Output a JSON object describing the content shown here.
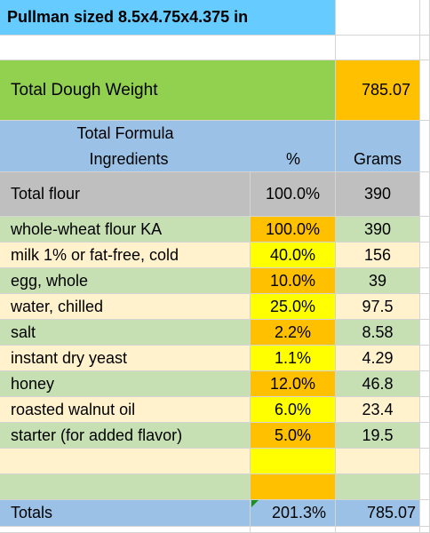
{
  "title": "Pullman sized 8.5x4.75x4.375 in",
  "total_dough": {
    "label": "Total Dough Weight",
    "value": "785.07"
  },
  "header": {
    "formula": "Total Formula",
    "ingredients": "Ingredients",
    "percent": "%",
    "grams": "Grams"
  },
  "total_flour": {
    "name": "Total flour",
    "pct": "100.0%",
    "grams": "390"
  },
  "ingredients": [
    {
      "name": "whole-wheat flour KA",
      "pct": "100.0%",
      "grams": "390"
    },
    {
      "name": "milk 1% or fat-free, cold",
      "pct": "40.0%",
      "grams": "156"
    },
    {
      "name": "egg, whole",
      "pct": "10.0%",
      "grams": "39"
    },
    {
      "name": "water, chilled",
      "pct": "25.0%",
      "grams": "97.5"
    },
    {
      "name": "salt",
      "pct": "2.2%",
      "grams": "8.58"
    },
    {
      "name": "instant dry yeast",
      "pct": "1.1%",
      "grams": "4.29"
    },
    {
      "name": "honey",
      "pct": "12.0%",
      "grams": "46.8"
    },
    {
      "name": "roasted walnut oil",
      "pct": "6.0%",
      "grams": "23.4"
    },
    {
      "name": "starter (for added flavor)",
      "pct": "5.0%",
      "grams": "19.5"
    }
  ],
  "totals": {
    "label": "Totals",
    "pct": "201.3%",
    "grams": "785.07"
  },
  "colors": {
    "title_bg": "#66ccff",
    "dough_label_bg": "#92d050",
    "dough_value_bg": "#ffc000",
    "header_bg": "#9bc2e6",
    "flour_bg": "#bfbfbf",
    "row_green": "#c6e0b4",
    "row_cream": "#fff2cc",
    "pct_orange": "#ffc000",
    "pct_yellow": "#ffff00"
  }
}
